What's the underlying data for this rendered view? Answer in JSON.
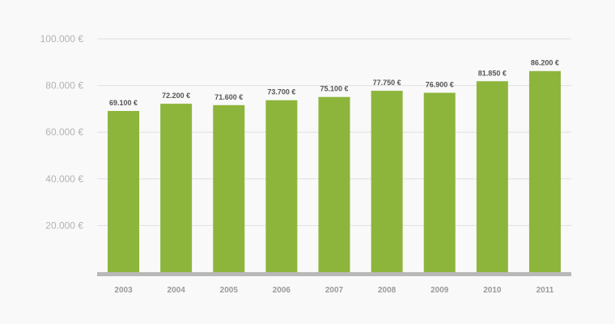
{
  "chart_data": {
    "type": "bar",
    "title": "",
    "xlabel": "",
    "ylabel": "",
    "categories": [
      "2003",
      "2004",
      "2005",
      "2006",
      "2007",
      "2008",
      "2009",
      "2010",
      "2011"
    ],
    "values": [
      69100,
      72200,
      71600,
      73700,
      75100,
      77750,
      76900,
      81850,
      86200
    ],
    "value_labels": [
      "69.100 €",
      "72.200 €",
      "71.600 €",
      "73.700 €",
      "75.100 €",
      "77.750 €",
      "76.900 €",
      "81.850 €",
      "86.200 €"
    ],
    "ylim": [
      0,
      100000
    ],
    "yticks": [
      20000,
      40000,
      60000,
      80000,
      100000
    ],
    "ytick_labels": [
      "20.000 €",
      "40.000 €",
      "60.000 €",
      "80.000 €",
      "100.000 €"
    ],
    "grid": true,
    "colors": {
      "bar": "#8db53c",
      "baseline": "#b8b8b8",
      "grid": "#e0e0e0",
      "background": "#f9f9f9"
    }
  }
}
